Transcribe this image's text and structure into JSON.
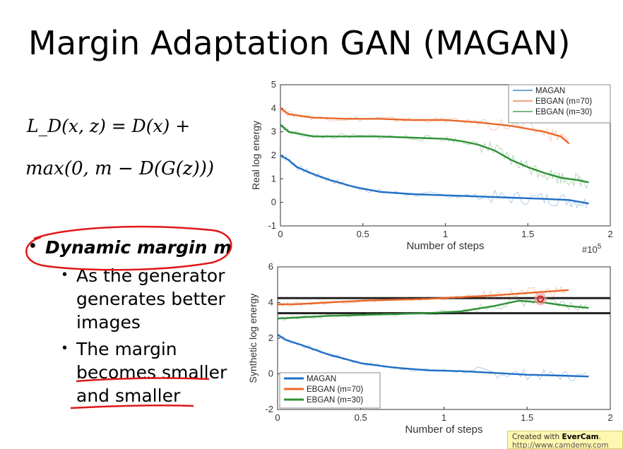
{
  "slide": {
    "title": "Margin Adaptation GAN (MAGAN)",
    "eq1": "L_D(x, z) = D(x) +",
    "eq2": "max(0, m − D(G(z)))",
    "bullet1": "Dynamic margin m",
    "subbullet1": "As the generator generates better images",
    "subbullet2": "The margin becomes smaller and smaller"
  },
  "watermark": {
    "line1_prefix": "Created with ",
    "brand": "EverCam",
    "line1_suffix": ".",
    "url": "http://www.camdemy.com"
  },
  "colors": {
    "magan": "#1f6fc5",
    "ebgan70": "#e8682a",
    "ebgan30": "#2e9137",
    "annotation": "#e01818"
  },
  "chart_data": [
    {
      "type": "line",
      "xlabel": "Number of steps",
      "ylabel": "Real log energy",
      "x_multiplier": "#10^5",
      "xlim": [
        0,
        2
      ],
      "ylim": [
        -1,
        5
      ],
      "xticks": [
        "0",
        "0.5",
        "1",
        "1.5",
        "2"
      ],
      "yticks": [
        "-1",
        "0",
        "1",
        "2",
        "3",
        "4",
        "5"
      ],
      "legend": "top-right",
      "series": [
        {
          "name": "MAGAN",
          "color": "#1f6fc5",
          "x": [
            0,
            0.05,
            0.1,
            0.2,
            0.3,
            0.45,
            0.6,
            0.8,
            1.0,
            1.2,
            1.4,
            1.6,
            1.75,
            1.87
          ],
          "y": [
            2.0,
            1.8,
            1.5,
            1.2,
            0.95,
            0.65,
            0.45,
            0.35,
            0.3,
            0.25,
            0.2,
            0.15,
            0.1,
            -0.05
          ]
        },
        {
          "name": "EBGAN (m=70)",
          "color": "#e8682a",
          "x": [
            0,
            0.05,
            0.2,
            0.4,
            0.6,
            0.8,
            1.0,
            1.2,
            1.4,
            1.6,
            1.7,
            1.75
          ],
          "y": [
            4.0,
            3.75,
            3.6,
            3.55,
            3.55,
            3.5,
            3.5,
            3.4,
            3.25,
            3.0,
            2.8,
            2.5
          ]
        },
        {
          "name": "EBGAN (m=30)",
          "color": "#2e9137",
          "x": [
            0,
            0.05,
            0.2,
            0.4,
            0.6,
            0.8,
            1.0,
            1.1,
            1.2,
            1.3,
            1.4,
            1.5,
            1.6,
            1.7,
            1.8,
            1.87
          ],
          "y": [
            3.3,
            3.0,
            2.8,
            2.8,
            2.8,
            2.75,
            2.7,
            2.6,
            2.45,
            2.2,
            1.8,
            1.5,
            1.25,
            1.05,
            0.95,
            0.85
          ]
        }
      ]
    },
    {
      "type": "line",
      "xlabel": "Number of steps",
      "ylabel": "Synthetic log energy",
      "x_multiplier": "#10^5",
      "xlim": [
        0,
        2
      ],
      "ylim": [
        -2,
        6
      ],
      "xticks": [
        "0",
        "0.5",
        "1",
        "1.5",
        "2"
      ],
      "yticks": [
        "-2",
        "0",
        "2",
        "4",
        "6"
      ],
      "legend": "bottom-left",
      "series": [
        {
          "name": "MAGAN",
          "color": "#1f6fc5",
          "x": [
            0,
            0.05,
            0.15,
            0.3,
            0.5,
            0.7,
            0.9,
            1.1,
            1.3,
            1.5,
            1.7,
            1.87
          ],
          "y": [
            2.2,
            1.9,
            1.6,
            1.1,
            0.6,
            0.35,
            0.2,
            0.15,
            0.05,
            -0.05,
            -0.1,
            -0.15
          ]
        },
        {
          "name": "EBGAN (m=70)",
          "color": "#e8682a",
          "x": [
            0,
            0.1,
            0.3,
            0.5,
            0.7,
            0.9,
            1.1,
            1.3,
            1.45,
            1.6,
            1.75
          ],
          "y": [
            3.9,
            3.9,
            4.0,
            4.1,
            4.15,
            4.2,
            4.3,
            4.4,
            4.5,
            4.6,
            4.7
          ]
        },
        {
          "name": "EBGAN (m=30)",
          "color": "#2e9137",
          "x": [
            0,
            0.1,
            0.3,
            0.5,
            0.7,
            0.9,
            1.1,
            1.3,
            1.45,
            1.6,
            1.75,
            1.87
          ],
          "y": [
            3.1,
            3.15,
            3.25,
            3.3,
            3.35,
            3.4,
            3.5,
            3.8,
            4.1,
            4.0,
            3.8,
            3.7
          ]
        }
      ],
      "hlines": [
        4.25,
        3.4
      ]
    }
  ]
}
